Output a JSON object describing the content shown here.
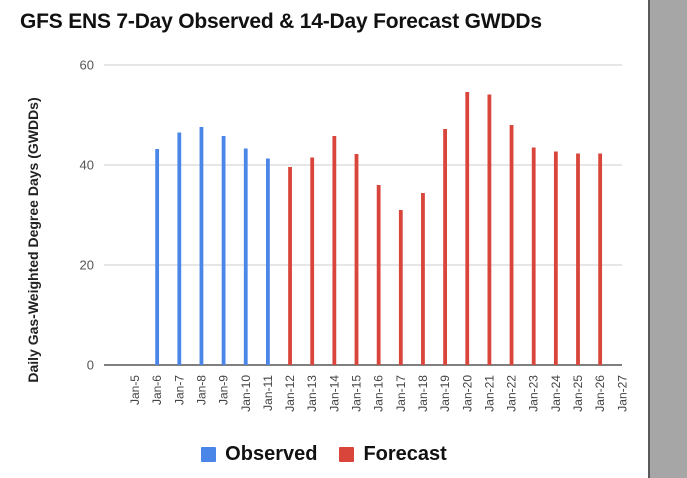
{
  "colors": {
    "observed": "#4a86e8",
    "forecast": "#d9453a"
  },
  "chart_data": {
    "type": "bar",
    "title": "GFS ENS 7-Day Observed & 14-Day Forecast GWDDs",
    "xlabel": "",
    "ylabel": "Daily Gas-Weighted Degree Days (GWDDs)",
    "ylim": [
      0,
      60
    ],
    "yticks": [
      0,
      20,
      40,
      60
    ],
    "grid": true,
    "legend_position": "bottom-center",
    "categories": [
      "Jan-5",
      "Jan-6",
      "Jan-7",
      "Jan-8",
      "Jan-9",
      "Jan-10",
      "Jan-11",
      "Jan-12",
      "Jan-13",
      "Jan-14",
      "Jan-15",
      "Jan-16",
      "Jan-17",
      "Jan-18",
      "Jan-19",
      "Jan-20",
      "Jan-21",
      "Jan-22",
      "Jan-23",
      "Jan-24",
      "Jan-25",
      "Jan-26",
      "Jan-27"
    ],
    "series": [
      {
        "name": "Observed",
        "values": [
          null,
          43.2,
          46.5,
          47.6,
          45.8,
          43.3,
          41.3,
          null,
          null,
          null,
          null,
          null,
          null,
          null,
          null,
          null,
          null,
          null,
          null,
          null,
          null,
          null,
          null
        ]
      },
      {
        "name": "Forecast",
        "values": [
          null,
          null,
          null,
          null,
          null,
          null,
          null,
          39.6,
          41.5,
          45.8,
          42.2,
          36.0,
          31.0,
          34.4,
          47.2,
          54.6,
          54.1,
          48.0,
          43.5,
          42.7,
          42.3,
          42.3,
          null
        ]
      }
    ]
  }
}
